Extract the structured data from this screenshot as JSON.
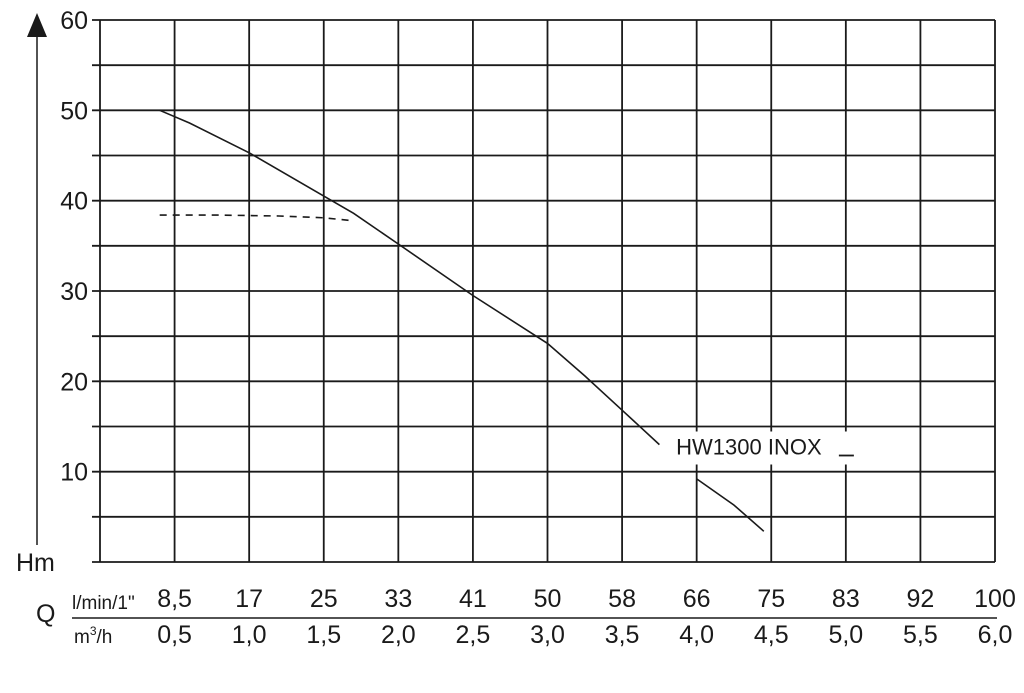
{
  "chart_data": {
    "type": "line",
    "title": "",
    "ylabel": "Hm",
    "ylim": [
      0,
      60
    ],
    "y_ticks": [
      10,
      20,
      30,
      40,
      50,
      60
    ],
    "x_axis_symbol": "Q",
    "x_flow_label": "l/min/1\"",
    "x_flow_values": [
      "8,5",
      "17",
      "25",
      "33",
      "41",
      "50",
      "58",
      "66",
      "75",
      "83",
      "92",
      "100"
    ],
    "x_volume_label_main": "m",
    "x_volume_label_sup": "3",
    "x_volume_label_tail": "/h",
    "x_volume_values": [
      "0,5",
      "1,0",
      "1,5",
      "2,0",
      "2,5",
      "3,0",
      "3,5",
      "4,0",
      "4,5",
      "5,0",
      "5,5",
      "6,0"
    ],
    "xlim_m3h": [
      0,
      6.0
    ],
    "grid": true,
    "series": [
      {
        "name": "HW1300 INOX",
        "style": "solid",
        "x": [
          0.4,
          0.6,
          1.0,
          1.5,
          1.7,
          2.0,
          2.5,
          3.0,
          3.25,
          3.5,
          3.75,
          4.0,
          4.25,
          4.45
        ],
        "y": [
          50,
          48.6,
          45.3,
          40.5,
          38.6,
          35.2,
          29.5,
          24.2,
          20.6,
          16.8,
          13,
          9.2,
          6.3,
          3.4
        ]
      },
      {
        "name": "",
        "style": "dashed",
        "x": [
          0.4,
          0.8,
          1.2,
          1.5,
          1.68
        ],
        "y": [
          38.4,
          38.4,
          38.3,
          38.1,
          37.8
        ]
      }
    ],
    "annotation": "HW1300 INOX",
    "annotation_at": [
      4.35,
      11.9
    ]
  }
}
